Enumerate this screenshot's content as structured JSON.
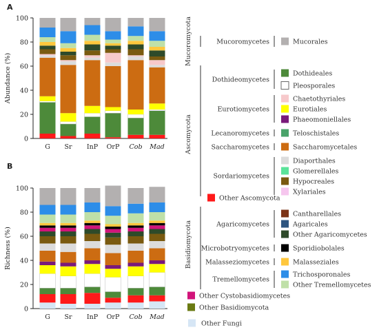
{
  "chart_data": [
    {
      "type": "bar",
      "panel": "A",
      "ylabel": "Abundance (%)",
      "ylim": [
        0,
        100
      ],
      "yticks": [
        0,
        20,
        40,
        60,
        80,
        100
      ],
      "categories": [
        "G",
        "Sr",
        "InP",
        "OrP",
        "Cob",
        "Mad"
      ],
      "italic_categories": [
        "Cob",
        "Mad"
      ],
      "series": [
        {
          "name": "Other Ascomycota",
          "values": [
            4,
            2,
            4,
            1,
            3,
            3
          ]
        },
        {
          "name": "Dothideales",
          "values": [
            26,
            10,
            14,
            20,
            14,
            20
          ]
        },
        {
          "name": "Pleosporales",
          "values": [
            1,
            2,
            3,
            2,
            3,
            1
          ]
        },
        {
          "name": "Eurotiales",
          "values": [
            4,
            7,
            6,
            3,
            4,
            5
          ]
        },
        {
          "name": "Saccharomycetales",
          "values": [
            32,
            40,
            38,
            34,
            41,
            30
          ]
        },
        {
          "name": "Diaporthales",
          "values": [
            2,
            3,
            2,
            3,
            3,
            2
          ]
        },
        {
          "name": "Chaetothyriales",
          "values": [
            1,
            1,
            2,
            8,
            1,
            4
          ]
        },
        {
          "name": "Hypocreales",
          "values": [
            4,
            4,
            4,
            3,
            5,
            3
          ]
        },
        {
          "name": "Other Agaricomycetes",
          "values": [
            3,
            3,
            5,
            3,
            4,
            5
          ]
        },
        {
          "name": "Malasseziales",
          "values": [
            3,
            3,
            3,
            2,
            3,
            3
          ]
        },
        {
          "name": "Other Tremellomycetes",
          "values": [
            4,
            4,
            5,
            3,
            4,
            5
          ]
        },
        {
          "name": "Trichosporonales",
          "values": [
            8,
            10,
            8,
            7,
            8,
            8
          ]
        },
        {
          "name": "Mucorales",
          "values": [
            8,
            11,
            6,
            11,
            7,
            11
          ]
        }
      ]
    },
    {
      "type": "bar",
      "panel": "B",
      "ylabel": "Richness (%)",
      "ylim": [
        0,
        100
      ],
      "yticks": [
        0,
        20,
        40,
        60,
        80,
        100
      ],
      "categories": [
        "G",
        "Sr",
        "InP",
        "OrP",
        "Cob",
        "Mad"
      ],
      "italic_categories": [
        "Cob",
        "Mad"
      ],
      "series": [
        {
          "name": "Other Fungi",
          "values": [
            5,
            4,
            4,
            5,
            5,
            6
          ]
        },
        {
          "name": "Other Ascomycota",
          "values": [
            7,
            8,
            9,
            4,
            6,
            5
          ]
        },
        {
          "name": "Dothideales",
          "values": [
            5,
            5,
            5,
            5,
            6,
            7
          ]
        },
        {
          "name": "Pleosporales",
          "values": [
            12,
            10,
            11,
            12,
            10,
            12
          ]
        },
        {
          "name": "Eurotiales",
          "values": [
            7,
            8,
            8,
            7,
            8,
            7
          ]
        },
        {
          "name": "Phaeomoniellales",
          "values": [
            3,
            3,
            3,
            3,
            3,
            3
          ]
        },
        {
          "name": "Saccharomycetales",
          "values": [
            9,
            9,
            10,
            10,
            10,
            10
          ]
        },
        {
          "name": "Diaporthales",
          "values": [
            6,
            7,
            6,
            7,
            6,
            6
          ]
        },
        {
          "name": "Hypocreales",
          "values": [
            6,
            6,
            6,
            6,
            6,
            6
          ]
        },
        {
          "name": "Other Agaricomycetes",
          "values": [
            4,
            4,
            4,
            4,
            4,
            4
          ]
        },
        {
          "name": "Other Cystobasidiomycetes",
          "values": [
            3,
            3,
            3,
            3,
            3,
            3
          ]
        },
        {
          "name": "Sporidiobolales",
          "values": [
            2,
            2,
            2,
            2,
            2,
            2
          ]
        },
        {
          "name": "Malasseziales",
          "values": [
            2,
            2,
            2,
            2,
            2,
            2
          ]
        },
        {
          "name": "Other Tremellomycetes",
          "values": [
            7,
            7,
            7,
            7,
            8,
            7
          ]
        },
        {
          "name": "Trichosporonales",
          "values": [
            8,
            8,
            8,
            8,
            8,
            8
          ]
        },
        {
          "name": "Mucorales",
          "values": [
            14,
            14,
            12,
            17,
            13,
            13
          ]
        }
      ]
    }
  ],
  "legend": {
    "phyla": [
      {
        "name": "Mucoromycota"
      },
      {
        "name": "Ascomycota"
      },
      {
        "name": "Basidiomycota"
      }
    ],
    "classes": [
      {
        "name": "Mucoromycetes"
      },
      {
        "name": "Dothideomycetes"
      },
      {
        "name": "Eurotiomycetes"
      },
      {
        "name": "Lecanoromycetes"
      },
      {
        "name": "Saccharomycetes"
      },
      {
        "name": "Sordariomycetes"
      },
      {
        "name": "Agaricomycetes"
      },
      {
        "name": "Microbotryomycetes"
      },
      {
        "name": "Malasseziomycetes"
      },
      {
        "name": "Tremellomycetes"
      }
    ],
    "orders": [
      {
        "name": "Mucorales",
        "color": "#b3b0b0"
      },
      {
        "name": "Dothideales",
        "color": "#4d8a3a"
      },
      {
        "name": "Pleosporales",
        "color": "#ffffff"
      },
      {
        "name": "Chaetothyriales",
        "color": "#f7c9cb"
      },
      {
        "name": "Eurotiales",
        "color": "#ffff00"
      },
      {
        "name": "Phaeomoniellales",
        "color": "#7a1a7a"
      },
      {
        "name": "Teloschistales",
        "color": "#4aa36a"
      },
      {
        "name": "Saccharomycetales",
        "color": "#cc6c12"
      },
      {
        "name": "Diaporthales",
        "color": "#dcdcdc"
      },
      {
        "name": "Glomerellales",
        "color": "#5be39a"
      },
      {
        "name": "Hypocreales",
        "color": "#7a5a10"
      },
      {
        "name": "Xylariales",
        "color": "#f6c6ee"
      },
      {
        "name": "Cantharellales",
        "color": "#7b3316"
      },
      {
        "name": "Agaricales",
        "color": "#2e5580"
      },
      {
        "name": "Other Agaricomycetes",
        "color": "#2e4a2a"
      },
      {
        "name": "Sporidiobolales",
        "color": "#000000"
      },
      {
        "name": "Malasseziales",
        "color": "#ffc73d"
      },
      {
        "name": "Trichosporonales",
        "color": "#2d8de8"
      },
      {
        "name": "Other Tremellomycetes",
        "color": "#bfe0a8"
      }
    ],
    "others": [
      {
        "name": "Other Ascomycota",
        "color": "#ff1a1a"
      },
      {
        "name": "Other Cystobasidiomycetes",
        "color": "#d1147a"
      },
      {
        "name": "Other Basidiomycota",
        "color": "#6a7a12"
      },
      {
        "name": "Other Fungi",
        "color": "#d6e6f5"
      }
    ]
  }
}
